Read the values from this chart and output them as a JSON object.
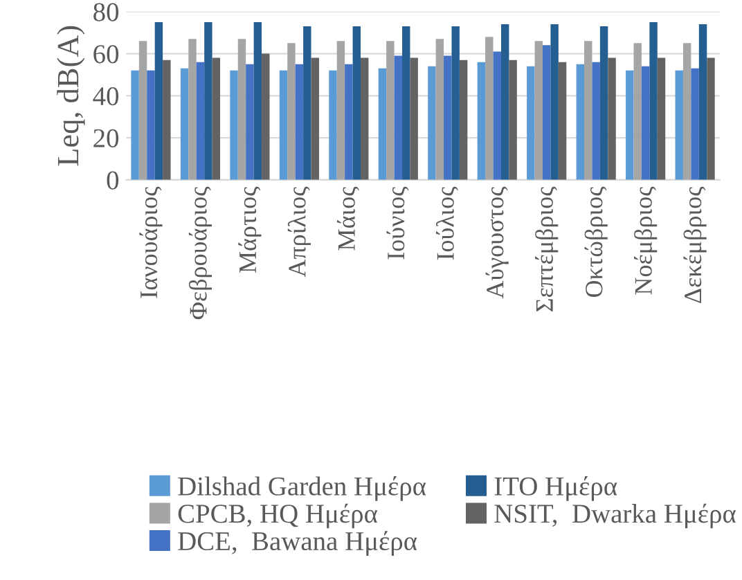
{
  "chart_data": {
    "type": "bar",
    "ylabel": "Leq, dB(A)",
    "ylim": [
      0,
      80
    ],
    "yticks": [
      0,
      20,
      40,
      60,
      80
    ],
    "grid": "y",
    "legend": "bottom",
    "categories": [
      "Ιανουάριος",
      "Φεβρουάριος",
      "Μάρτιος",
      "Απρίλιος",
      "Μάιος",
      "Ιούνιος",
      "Ιούλιος",
      "Αύγουστος",
      "Σεπτέμβριος",
      "Οκτώβριος",
      "Νοέμβριος",
      "Δεκέμβριος"
    ],
    "series": [
      {
        "name": "Dilshad Garden Ημέρα",
        "color": "#5b9bd5",
        "values": [
          52,
          53,
          52,
          52,
          52,
          53,
          54,
          56,
          54,
          55,
          52,
          52
        ]
      },
      {
        "name": "CPCB, HQ Ημέρα",
        "color": "#a5a5a5",
        "values": [
          66,
          67,
          67,
          65,
          66,
          66,
          67,
          68,
          66,
          66,
          65,
          65
        ]
      },
      {
        "name": "DCE,  Bawana Ημέρα",
        "color": "#4472c4",
        "values": [
          52,
          56,
          55,
          55,
          55,
          59,
          59,
          61,
          64,
          56,
          54,
          53
        ]
      },
      {
        "name": "ITO Ημέρα",
        "color": "#255e91",
        "values": [
          75,
          75,
          75,
          73,
          73,
          73,
          73,
          74,
          74,
          73,
          75,
          74
        ]
      },
      {
        "name": "NSIT,  Dwarka Ημέρα",
        "color": "#636363",
        "values": [
          57,
          58,
          60,
          58,
          58,
          58,
          57,
          57,
          56,
          58,
          58,
          58
        ]
      }
    ]
  }
}
